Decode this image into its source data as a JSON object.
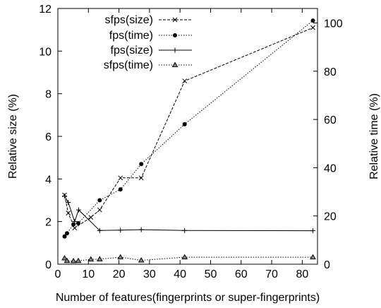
{
  "chart_data": {
    "type": "line",
    "xlabel": "Number of features(fingerprints or super-fingerprints)",
    "ylabel_left": "Relative size (%)",
    "ylabel_right": "Relative time (%)",
    "xlim": [
      0,
      85
    ],
    "ylim_left": [
      0,
      12
    ],
    "ylim_right": [
      0,
      106
    ],
    "x_ticks": [
      0,
      10,
      20,
      30,
      40,
      50,
      60,
      70,
      80
    ],
    "y_ticks_left": [
      0,
      2,
      4,
      6,
      8,
      10,
      12
    ],
    "y_ticks_right": [
      0,
      20,
      40,
      60,
      80,
      100
    ],
    "grid": false,
    "legend_position": "top-left",
    "series": [
      {
        "name": "sfps(size)",
        "axis": "left",
        "style": "dashed",
        "marker": "x",
        "x": [
          2.2,
          3.4,
          5.5,
          10.8,
          13.7,
          20.5,
          27.3,
          41.5,
          83.5
        ],
        "y": [
          3.25,
          2.4,
          1.7,
          2.2,
          2.55,
          4.05,
          4.05,
          8.6,
          11.1
        ]
      },
      {
        "name": "fps(time)",
        "axis": "right",
        "style": "dotted",
        "marker": "filled-circle",
        "x": [
          2.2,
          3.0,
          5.1,
          6.7,
          13.7,
          20.5,
          27.3,
          41.5,
          83.5
        ],
        "y": [
          11.5,
          12.8,
          16.5,
          17.0,
          26.5,
          31.0,
          41.5,
          58.0,
          101.0
        ]
      },
      {
        "name": "fps(size)",
        "axis": "left",
        "style": "solid",
        "marker": "+",
        "x": [
          2.2,
          3.4,
          5.5,
          6.8,
          13.7,
          20.5,
          27.3,
          41.5,
          83.5
        ],
        "y": [
          3.2,
          2.9,
          2.0,
          2.55,
          1.58,
          1.6,
          1.62,
          1.58,
          1.57
        ]
      },
      {
        "name": "sfps(time)",
        "axis": "right",
        "style": "dotted",
        "marker": "triangle",
        "x": [
          2.2,
          3.0,
          5.1,
          6.7,
          10.8,
          13.7,
          20.5,
          27.3,
          41.5,
          83.5
        ],
        "y": [
          2.5,
          1.4,
          1.3,
          1.4,
          2.0,
          2.1,
          2.9,
          1.6,
          2.9,
          2.9
        ]
      }
    ]
  }
}
